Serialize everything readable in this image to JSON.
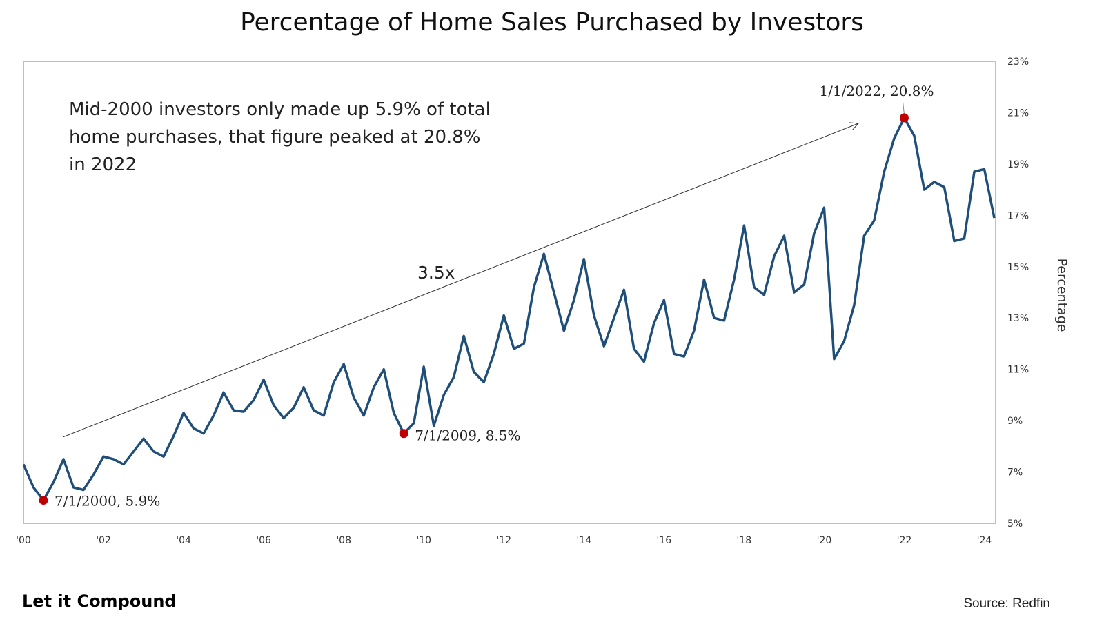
{
  "chart_data": {
    "type": "line",
    "title": "Percentage of Home Sales Purchased by Investors",
    "ylabel": "Percentage",
    "xlabel": "",
    "ylim": [
      5,
      23
    ],
    "yticks": [
      "5%",
      "7%",
      "9%",
      "11%",
      "13%",
      "15%",
      "17%",
      "19%",
      "21%",
      "23%"
    ],
    "xticks": [
      "'00",
      "'02",
      "'04",
      "'06",
      "'08",
      "'10",
      "'12",
      "'14",
      "'16",
      "'18",
      "'20",
      "'22",
      "'24"
    ],
    "grid": false,
    "series": [
      {
        "color": "#1f4e79",
        "x": [
          2000.0,
          2000.25,
          2000.5,
          2000.75,
          2001.0,
          2001.25,
          2001.5,
          2001.75,
          2002.0,
          2002.25,
          2002.5,
          2002.75,
          2003.0,
          2003.25,
          2003.5,
          2003.75,
          2004.0,
          2004.25,
          2004.5,
          2004.75,
          2005.0,
          2005.25,
          2005.5,
          2005.75,
          2006.0,
          2006.25,
          2006.5,
          2006.75,
          2007.0,
          2007.25,
          2007.5,
          2007.75,
          2008.0,
          2008.25,
          2008.5,
          2008.75,
          2009.0,
          2009.25,
          2009.5,
          2009.75,
          2010.0,
          2010.25,
          2010.5,
          2010.75,
          2011.0,
          2011.25,
          2011.5,
          2011.75,
          2012.0,
          2012.25,
          2012.5,
          2012.75,
          2013.0,
          2013.25,
          2013.5,
          2013.75,
          2014.0,
          2014.25,
          2014.5,
          2014.75,
          2015.0,
          2015.25,
          2015.5,
          2015.75,
          2016.0,
          2016.25,
          2016.5,
          2016.75,
          2017.0,
          2017.25,
          2017.5,
          2017.75,
          2018.0,
          2018.25,
          2018.5,
          2018.75,
          2019.0,
          2019.25,
          2019.5,
          2019.75,
          2020.0,
          2020.25,
          2020.5,
          2020.75,
          2021.0,
          2021.25,
          2021.5,
          2021.75,
          2022.0,
          2022.25,
          2022.5,
          2022.75,
          2023.0,
          2023.25,
          2023.5,
          2023.75,
          2024.0,
          2024.25
        ],
        "values": [
          7.3,
          6.4,
          5.9,
          6.6,
          7.5,
          6.4,
          6.3,
          6.9,
          7.6,
          7.5,
          7.3,
          7.8,
          8.3,
          7.8,
          7.6,
          8.4,
          9.3,
          8.7,
          8.5,
          9.2,
          10.1,
          9.4,
          9.35,
          9.8,
          10.6,
          9.6,
          9.1,
          9.5,
          10.3,
          9.4,
          9.2,
          10.5,
          11.2,
          9.9,
          9.2,
          10.3,
          11.0,
          9.3,
          8.5,
          8.9,
          11.1,
          8.8,
          10.0,
          10.7,
          12.3,
          10.9,
          10.5,
          11.6,
          13.1,
          11.8,
          12.0,
          14.2,
          15.5,
          14.0,
          12.5,
          13.7,
          15.3,
          13.1,
          11.9,
          13.0,
          14.1,
          11.8,
          11.3,
          12.8,
          13.7,
          11.6,
          11.5,
          12.5,
          14.5,
          13.0,
          12.9,
          14.5,
          16.6,
          14.2,
          13.9,
          15.4,
          16.2,
          14.0,
          14.3,
          16.3,
          17.3,
          11.4,
          12.1,
          13.5,
          16.2,
          16.8,
          18.7,
          20.0,
          20.8,
          20.1,
          18.0,
          18.3,
          18.1,
          16.0,
          16.1,
          18.7,
          18.8,
          16.9
        ]
      }
    ],
    "highlight_points": [
      {
        "x": 2000.5,
        "y": 5.9,
        "label": "7/1/2000, 5.9%"
      },
      {
        "x": 2009.5,
        "y": 8.5,
        "label": "7/1/2009, 8.5%"
      },
      {
        "x": 2022.0,
        "y": 20.8,
        "label": "1/1/2022, 20.8%"
      }
    ],
    "annotations": {
      "note_lines": [
        "Mid-2000 investors only made up 5.9% of total",
        "home purchases, that figure peaked at 20.8%",
        "in 2022"
      ],
      "arrow_label": "3.5x"
    },
    "colors": {
      "line": "#1f4e79",
      "marker": "#c00000",
      "frame": "#bfbfbf"
    }
  },
  "footer": {
    "brand": "Let it Compound",
    "source": "Source: Redfin"
  }
}
